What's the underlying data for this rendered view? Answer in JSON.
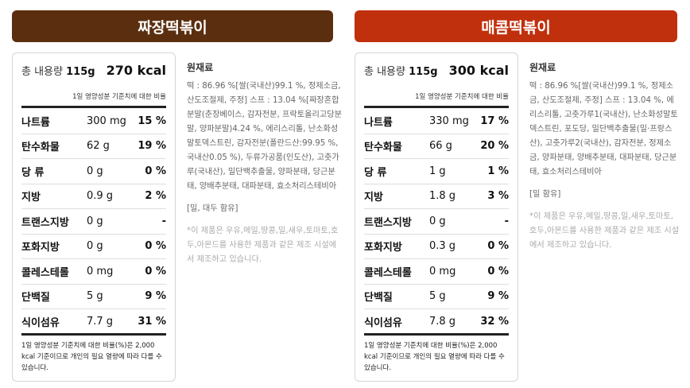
{
  "products": [
    {
      "title": "짜장떡볶이",
      "total_label": "총 내용량",
      "total_amount": "115g",
      "kcal": "270 kcal",
      "sub_note": "1일 영양성분 기준치에 대한 비율",
      "nutrients": [
        {
          "name": "나트륨",
          "value": "300 mg",
          "pct": "15 %"
        },
        {
          "name": "탄수화물",
          "value": "62 g",
          "pct": "19 %"
        },
        {
          "name": "당 류",
          "value": "0 g",
          "pct": "0 %"
        },
        {
          "name": "지방",
          "value": "0.9 g",
          "pct": "2 %"
        },
        {
          "name": "트랜스지방",
          "value": "0 g",
          "pct": "-"
        },
        {
          "name": "포화지방",
          "value": "0 g",
          "pct": "0 %"
        },
        {
          "name": "콜레스테롤",
          "value": "0 mg",
          "pct": "0 %"
        },
        {
          "name": "단백질",
          "value": "5 g",
          "pct": "9 %"
        },
        {
          "name": "식이섬유",
          "value": "7.7 g",
          "pct": "31 %"
        }
      ],
      "footnote": "1일 영양성분 기준치에 대한 비율(%)은 2,000 kcal 기준이므로 개인의 필요 열량에 따라 다를 수 있습니다.",
      "ingredients_heading": "원재료",
      "ingredients": "떡 : 86.96 %[쌀(국내산)99.1 %, 정제소금, 산도조절제, 주정] 스프 : 13.04 %[짜장혼합분말(춘장베이스, 감자전분, 프락토올리고당분말, 양파분말)4.24 %, 에리스리톨, 난소화성말토덱스트린, 감자전분(폴란드산:99.95 %,국내산0.05 %), 두류가공품(인도산), 고춧가루(국내산), 밀단백추출물, 양파분태, 당근분태, 양배추분태, 대파분태, 효소처리스테비아",
      "allergy": "[밀, 대두 함유]",
      "note": "*이 제품은 우유,메밀,땅콩,밀,새우,토마토,호두,아몬드를 사용한 제품과 같은 제조 시설에서 제조하고 있습니다."
    },
    {
      "title": "매콤떡볶이",
      "total_label": "총 내용량",
      "total_amount": "115g",
      "kcal": "300 kcal",
      "sub_note": "1일 영양성분 기준치에 대한 비율",
      "nutrients": [
        {
          "name": "나트륨",
          "value": "330 mg",
          "pct": "17 %"
        },
        {
          "name": "탄수화물",
          "value": "66 g",
          "pct": "20 %"
        },
        {
          "name": "당 류",
          "value": "1 g",
          "pct": "1 %"
        },
        {
          "name": "지방",
          "value": "1.8 g",
          "pct": "3 %"
        },
        {
          "name": "트랜스지방",
          "value": "0 g",
          "pct": "-"
        },
        {
          "name": "포화지방",
          "value": "0.3 g",
          "pct": "0 %"
        },
        {
          "name": "콜레스테롤",
          "value": "0 mg",
          "pct": "0 %"
        },
        {
          "name": "단백질",
          "value": "5 g",
          "pct": "9 %"
        },
        {
          "name": "식이섬유",
          "value": "7.8 g",
          "pct": "32 %"
        }
      ],
      "footnote": "1일 영양성분 기준치에 대한 비율(%)은 2,000 kcal 기준이므로 개인의 필요 열량에 따라 다를 수 있습니다.",
      "ingredients_heading": "원재료",
      "ingredients": "떡 : 86.96 %[쌀(국내산)99.1 %, 정제소금, 산도조절제, 주정] 스프 : 13.04 %, 에리스리톨, 고춧가루1(국내산), 난소화성말토덱스트린, 포도당, 밀단백추출물(밀·프랑스산), 고춧가루2(국내산), 감자전분, 정제소금, 양파분태, 양배추분태, 대파분태, 당근분태, 효소처리스테비아",
      "allergy": "[밀 함유]",
      "note": "*이 제품은 우유,메밀,땅콩,밀,새우,토마토,호두,아몬드를 사용한 제품과 같은 제조 시설에서 제조하고 있습니다."
    }
  ]
}
